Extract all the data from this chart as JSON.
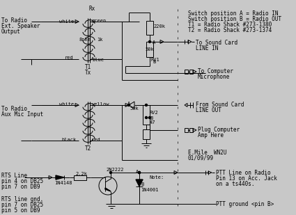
{
  "bg_color": "#c8c8c8",
  "fg_color": "#000000",
  "notes": [
    "Switch position A = Radio IN",
    "Switch position B = Radio OUT",
    "T1 = Radio Shack #273-1380",
    "T2 = Radio Shack #273-1374"
  ]
}
